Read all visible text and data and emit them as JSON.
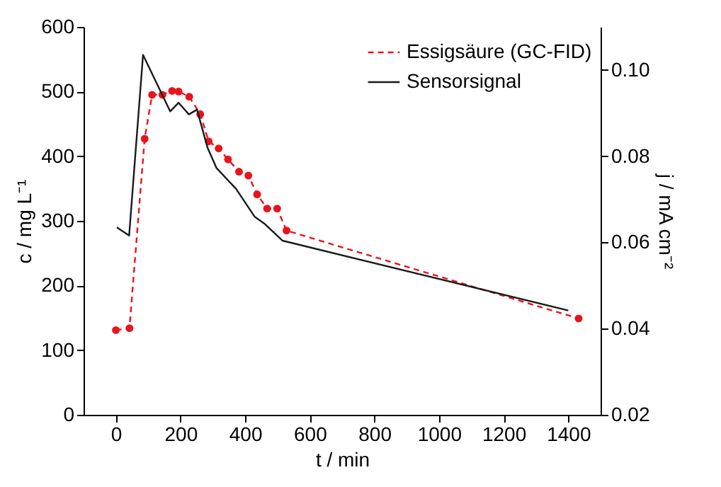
{
  "chart_data": {
    "type": "line",
    "xlabel": "t / min",
    "ylabel": "c / mg L⁻¹",
    "y2label": "j / mA cm⁻²",
    "xlim": [
      -100,
      1500
    ],
    "xticks": [
      0,
      200,
      400,
      600,
      800,
      1000,
      1200,
      1400
    ],
    "ylim": [
      0,
      600
    ],
    "yticks": [
      0,
      100,
      200,
      300,
      400,
      500,
      600
    ],
    "y2lim": [
      0.02,
      0.11
    ],
    "y2ticks": [
      {
        "value": 0.02,
        "label": "0.02"
      },
      {
        "value": 0.04,
        "label": "0.04"
      },
      {
        "value": 0.06,
        "label": "0.06"
      },
      {
        "value": 0.08,
        "label": "0.08"
      },
      {
        "value": 0.1,
        "label": "0.10"
      }
    ],
    "legend": "top right",
    "grid": false,
    "series": [
      {
        "name": "Essigsäure (GC-FID)",
        "color": "#e8141c",
        "marker": "circle",
        "line_style": "dashed",
        "x": [
          0,
          42,
          89,
          112,
          144,
          174,
          194,
          227,
          261,
          287,
          318,
          347,
          381,
          410,
          437,
          468,
          499,
          528,
          1432
        ],
        "values": [
          131,
          134,
          427,
          495,
          495,
          501,
          500,
          492,
          465,
          423,
          412,
          395,
          376,
          370,
          341,
          319,
          319,
          285,
          149
        ]
      },
      {
        "name": "Sensorsignal",
        "color": "#1a1a1a",
        "marker": "none",
        "line_style": "solid",
        "axis": "y2",
        "x": [
          3,
          41,
          84,
          168,
          194,
          226,
          251,
          284,
          311,
          372,
          429,
          459,
          516,
          1400
        ],
        "values": [
          0.0635,
          0.0616,
          0.1035,
          0.0904,
          0.0924,
          0.0897,
          0.0908,
          0.0819,
          0.0773,
          0.0724,
          0.066,
          0.0644,
          0.0604,
          0.0442
        ]
      }
    ]
  }
}
